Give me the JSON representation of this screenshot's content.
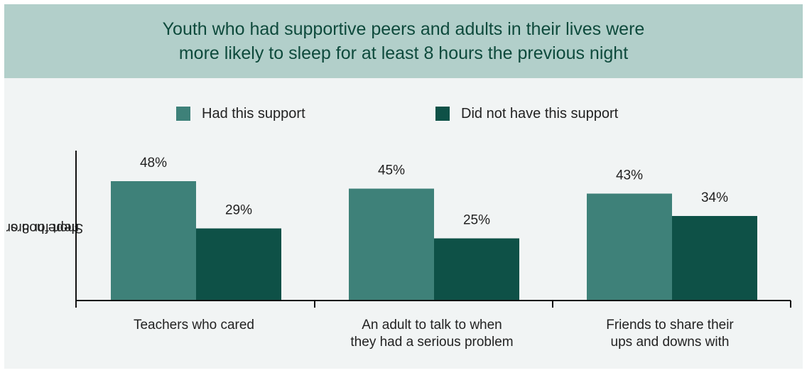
{
  "header": {
    "title_line1": "Youth who had supportive peers and adults in their lives were",
    "title_line2": "more likely to sleep for at least 8 hours the previous night"
  },
  "colors": {
    "header_bg": "#b2cfca",
    "title_text": "#0e4a3c",
    "panel_bg": "#f1f4f4",
    "had_support": "#3e8179",
    "no_support": "#0e5147"
  },
  "chart_data": {
    "type": "bar",
    "title": "Youth who had supportive peers and adults in their lives were more likely to sleep for at least 8 hours the previous night",
    "ylabel_line1": "Slept for 8 or",
    "ylabel_line2": "more hours",
    "xlabel": "",
    "categories": [
      "Teachers who cared",
      "An adult to talk to when they had a serious problem",
      "Friends to share their ups and downs with"
    ],
    "category_lines": [
      [
        "Teachers who cared"
      ],
      [
        "An adult to talk to when",
        "they had a serious problem"
      ],
      [
        "Friends to share their",
        "ups and downs with"
      ]
    ],
    "series": [
      {
        "name": "Had this support",
        "values": [
          48,
          45,
          43
        ],
        "labels": [
          "48%",
          "45%",
          "43%"
        ],
        "color": "#3e8179"
      },
      {
        "name": "Did not have this support",
        "values": [
          29,
          25,
          34
        ],
        "labels": [
          "29%",
          "25%",
          "34%"
        ],
        "color": "#0e5147"
      }
    ],
    "ylim": [
      0,
      60
    ],
    "grid": false,
    "legend_position": "top"
  }
}
